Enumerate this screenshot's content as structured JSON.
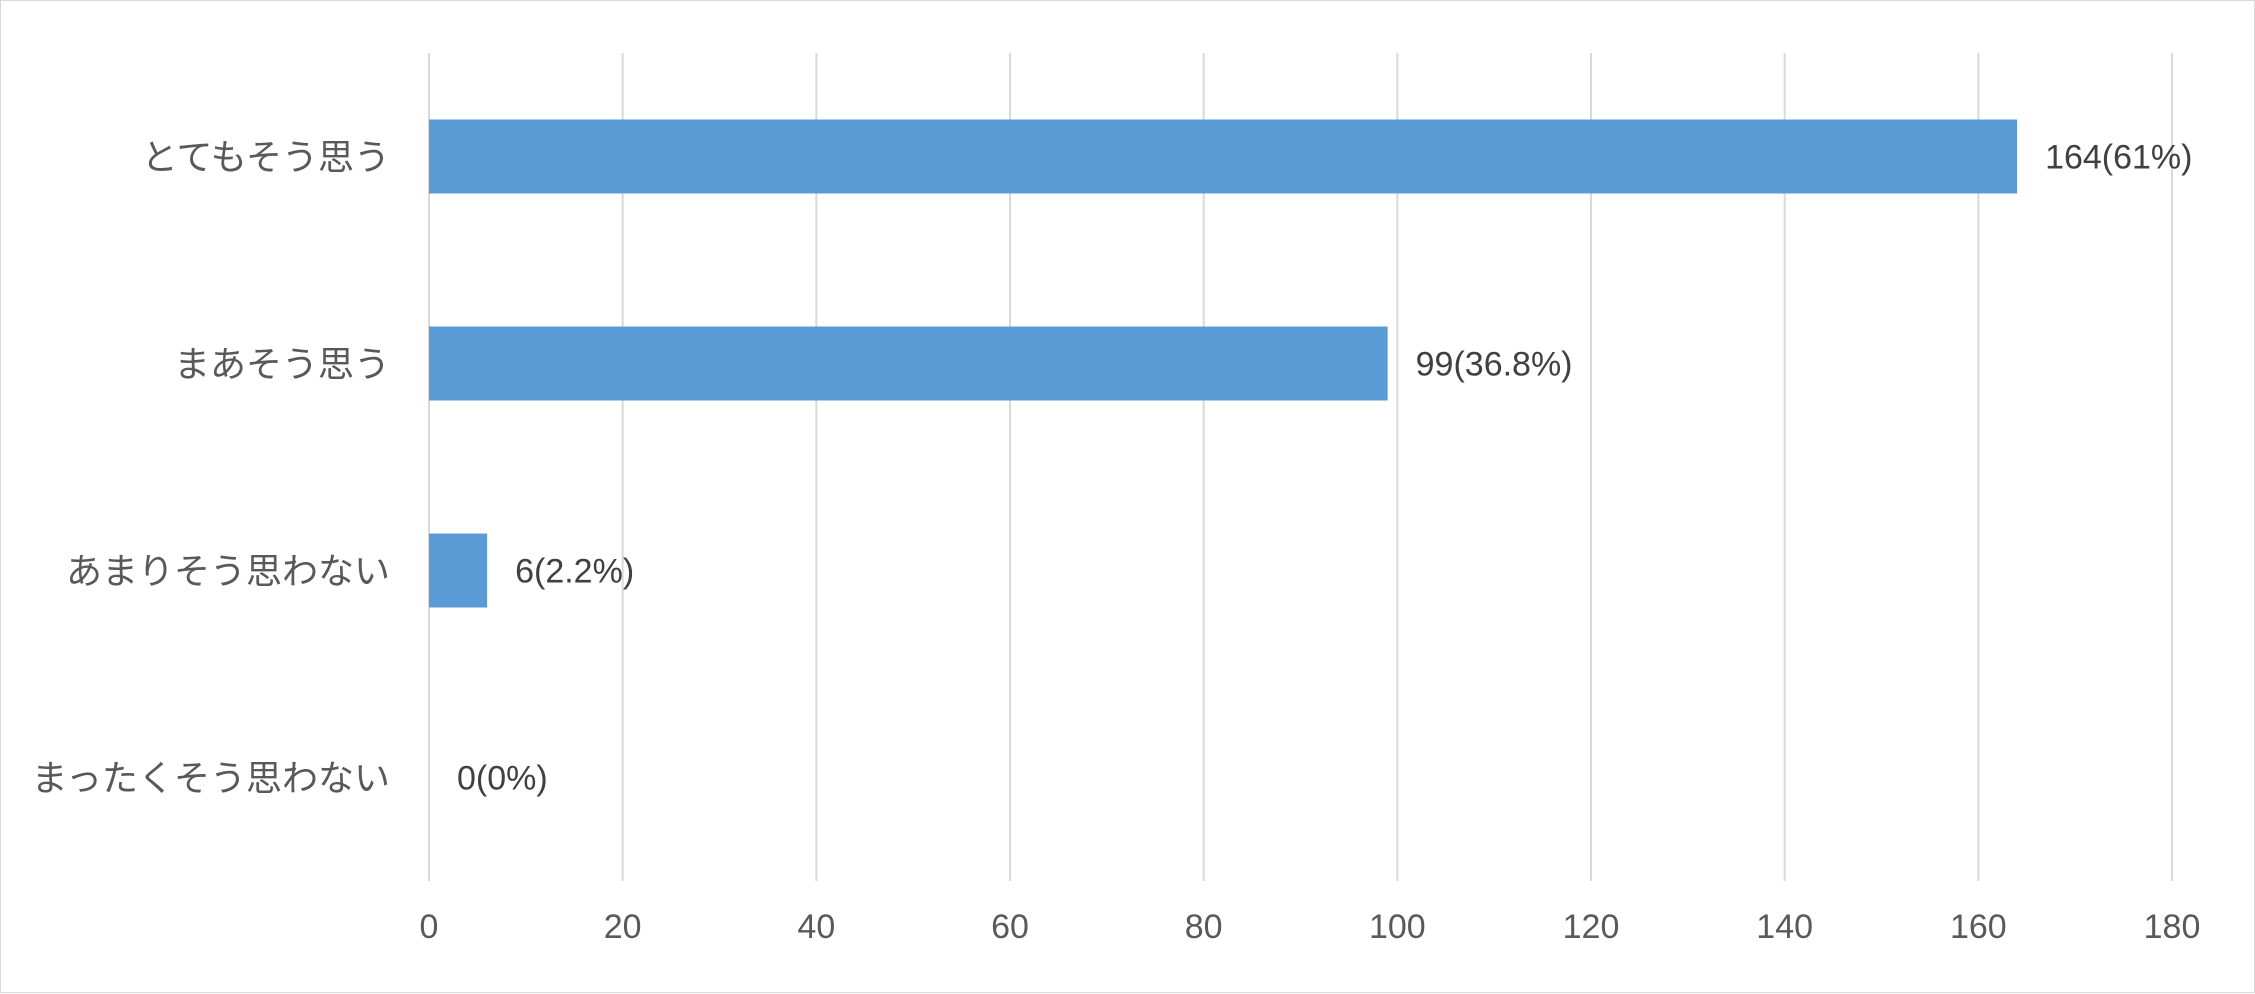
{
  "chart_data": {
    "type": "bar",
    "orientation": "horizontal",
    "categories": [
      "とてもそう思う",
      "まあそう思う",
      "あまりそう思わない",
      "まったくそう思わない"
    ],
    "values": [
      164,
      99,
      6,
      0
    ],
    "data_labels": [
      "164(61%)",
      "99(36.8%)",
      "6(2.2%)",
      "0(0%)"
    ],
    "xlim": [
      0,
      180
    ],
    "xticks": [
      0,
      20,
      40,
      60,
      80,
      100,
      120,
      140,
      160,
      180
    ],
    "xtick_labels": [
      "0",
      "20",
      "40",
      "60",
      "80",
      "100",
      "120",
      "140",
      "160",
      "180"
    ],
    "grid": "vertical",
    "legend": "none",
    "bar_color": "#5b9bd5",
    "grid_color": "#d9d9d9",
    "title": "",
    "xlabel": "",
    "ylabel": ""
  }
}
